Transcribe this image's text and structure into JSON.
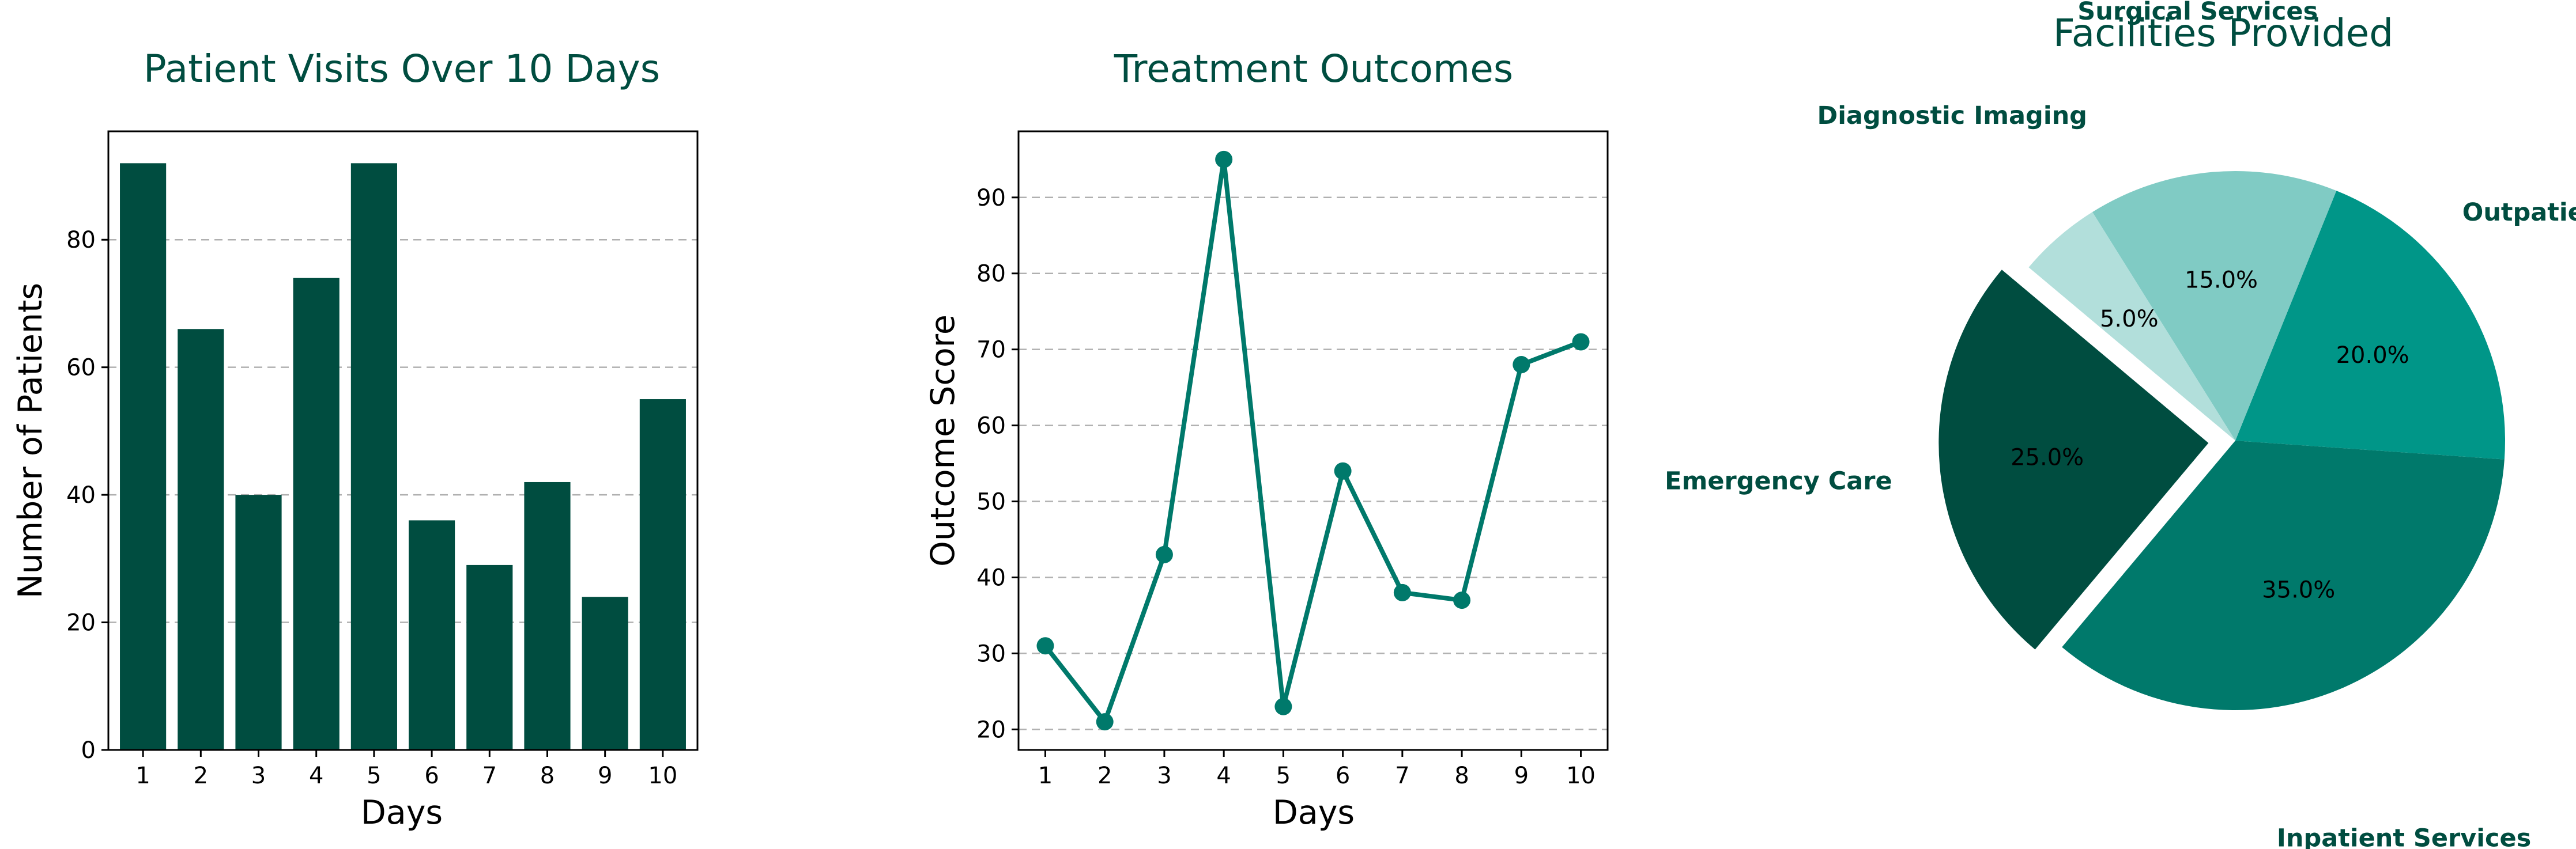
{
  "chart_data": [
    {
      "type": "bar",
      "title": "Patient Visits Over 10 Days",
      "xlabel": "Days",
      "ylabel": "Number of Patients",
      "categories": [
        "1",
        "2",
        "3",
        "4",
        "5",
        "6",
        "7",
        "8",
        "9",
        "10"
      ],
      "values": [
        92,
        66,
        40,
        74,
        92,
        36,
        29,
        42,
        24,
        55
      ],
      "ylim": [
        0,
        97
      ],
      "yticks": [
        0,
        20,
        40,
        60,
        80
      ],
      "grid": "y-dashed",
      "color": "#004d40"
    },
    {
      "type": "line",
      "title": "Treatment Outcomes",
      "xlabel": "Days",
      "ylabel": "Outcome Score",
      "x": [
        1,
        2,
        3,
        4,
        5,
        6,
        7,
        8,
        9,
        10
      ],
      "values": [
        31,
        21,
        43,
        95,
        23,
        54,
        38,
        37,
        68,
        71
      ],
      "xlim": [
        0.55,
        10.45
      ],
      "ylim": [
        17.3,
        98.7
      ],
      "yticks": [
        20,
        30,
        40,
        50,
        60,
        70,
        80,
        90
      ],
      "grid": "y-dashed",
      "color": "#00796b"
    },
    {
      "type": "pie",
      "title": "Facilities Provided",
      "slices": [
        {
          "label": "Emergency Care",
          "value": 25.0,
          "pct_label": "25.0%",
          "color": "#004d40",
          "exploded": true
        },
        {
          "label": "Inpatient Services",
          "value": 35.0,
          "pct_label": "35.0%",
          "color": "#00796b",
          "exploded": false
        },
        {
          "label": "Outpatient Services",
          "value": 20.0,
          "pct_label": "20.0%",
          "color": "#009688",
          "exploded": false
        },
        {
          "label": "Surgical Services",
          "value": 15.0,
          "pct_label": "15.0%",
          "color": "#80cbc4",
          "exploded": false
        },
        {
          "label": "Diagnostic Imaging",
          "value": 5.0,
          "pct_label": "5.0%",
          "color": "#b2dfdb",
          "exploded": false
        }
      ],
      "start_angle_deg": 140,
      "direction": "counterclockwise"
    }
  ]
}
